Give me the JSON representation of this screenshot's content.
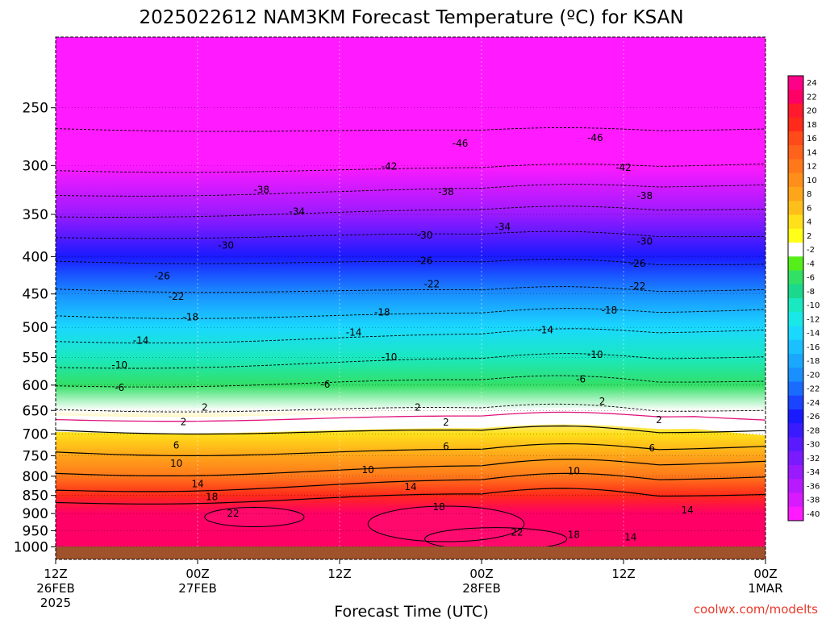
{
  "chart_data": {
    "type": "heatmap",
    "title": "2025022612 NAM3KM Forecast Temperature (ºC) for KSAN",
    "xlabel": "Forecast Time (UTC)",
    "ylabel": "",
    "y_scale": "log-pressure",
    "ylim": [
      1040,
      200
    ],
    "yticks": [
      "250",
      "300",
      "350",
      "400",
      "450",
      "500",
      "550",
      "600",
      "650",
      "700",
      "750",
      "800",
      "850",
      "900",
      "950",
      "1000"
    ],
    "x_ticks": [
      {
        "lines": [
          "12Z",
          "26FEB",
          "2025"
        ]
      },
      {
        "lines": [
          "00Z",
          "27FEB"
        ]
      },
      {
        "lines": [
          "12Z"
        ]
      },
      {
        "lines": [
          "00Z",
          "28FEB"
        ]
      },
      {
        "lines": [
          "12Z"
        ]
      },
      {
        "lines": [
          "00Z",
          "1MAR"
        ]
      }
    ],
    "x_valid_times": [
      "2025-02-26 12Z",
      "2025-02-27 00Z",
      "2025-02-27 12Z",
      "2025-02-28 00Z",
      "2025-02-28 12Z",
      "2025-03-01 00Z"
    ],
    "grid": "dotted",
    "colorbar": {
      "position": "right",
      "labels": [
        "24",
        "22",
        "20",
        "18",
        "16",
        "14",
        "12",
        "10",
        "8",
        "6",
        "4",
        "2",
        "-2",
        "-4",
        "-6",
        "-8",
        "-10",
        "-12",
        "-14",
        "-16",
        "-18",
        "-20",
        "-22",
        "-24",
        "-26",
        "-28",
        "-30",
        "-32",
        "-34",
        "-36",
        "-38",
        "-40"
      ],
      "colors": [
        "#ff0088",
        "#ff0066",
        "#ff1a2e",
        "#ff2a1a",
        "#ff4a1a",
        "#ff621a",
        "#ff781a",
        "#ff8f1a",
        "#ffa51a",
        "#ffbf1a",
        "#ffe01a",
        "#ffff1a",
        "#ffffff",
        "#55ee1a",
        "#33e066",
        "#1ad88c",
        "#1ae8c0",
        "#1ae8e8",
        "#1ad8ff",
        "#1ac0ff",
        "#1aa8ff",
        "#1a90ff",
        "#1a6cff",
        "#1a44ff",
        "#1a1aff",
        "#3a1aff",
        "#5a1aff",
        "#7a1aff",
        "#9a1aff",
        "#b81aff",
        "#d81aff",
        "#ff1aff"
      ]
    },
    "temperature_profile": [
      {
        "p": 1000,
        "t": 22
      },
      {
        "p": 950,
        "t": 22
      },
      {
        "p": 900,
        "t": 21
      },
      {
        "p": 850,
        "t": 17
      },
      {
        "p": 800,
        "t": 12
      },
      {
        "p": 750,
        "t": 8
      },
      {
        "p": 700,
        "t": 3
      },
      {
        "p": 650,
        "t": -2
      },
      {
        "p": 600,
        "t": -6
      },
      {
        "p": 550,
        "t": -11
      },
      {
        "p": 500,
        "t": -15
      },
      {
        "p": 450,
        "t": -21
      },
      {
        "p": 400,
        "t": -27
      },
      {
        "p": 350,
        "t": -34
      },
      {
        "p": 300,
        "t": -42
      },
      {
        "p": 250,
        "t": -48
      },
      {
        "p": 200,
        "t": -52
      }
    ],
    "contour_labels": [
      {
        "text": "-46",
        "x": 0.57,
        "p": 280
      },
      {
        "text": "-46",
        "x": 0.76,
        "p": 275
      },
      {
        "text": "-42",
        "x": 0.47,
        "p": 301
      },
      {
        "text": "-42",
        "x": 0.8,
        "p": 302
      },
      {
        "text": "-38",
        "x": 0.29,
        "p": 324
      },
      {
        "text": "-38",
        "x": 0.55,
        "p": 326
      },
      {
        "text": "-38",
        "x": 0.83,
        "p": 330
      },
      {
        "text": "-34",
        "x": 0.34,
        "p": 347
      },
      {
        "text": "-34",
        "x": 0.63,
        "p": 364
      },
      {
        "text": "-30",
        "x": 0.24,
        "p": 386
      },
      {
        "text": "-30",
        "x": 0.52,
        "p": 374
      },
      {
        "text": "-30",
        "x": 0.83,
        "p": 381
      },
      {
        "text": "-26",
        "x": 0.15,
        "p": 425
      },
      {
        "text": "-26",
        "x": 0.52,
        "p": 405
      },
      {
        "text": "-26",
        "x": 0.82,
        "p": 409
      },
      {
        "text": "-22",
        "x": 0.17,
        "p": 454
      },
      {
        "text": "-22",
        "x": 0.53,
        "p": 436
      },
      {
        "text": "-22",
        "x": 0.82,
        "p": 439
      },
      {
        "text": "-18",
        "x": 0.19,
        "p": 484
      },
      {
        "text": "-18",
        "x": 0.46,
        "p": 477
      },
      {
        "text": "-18",
        "x": 0.78,
        "p": 474
      },
      {
        "text": "-14",
        "x": 0.12,
        "p": 521
      },
      {
        "text": "-14",
        "x": 0.42,
        "p": 508
      },
      {
        "text": "-14",
        "x": 0.69,
        "p": 504
      },
      {
        "text": "-10",
        "x": 0.09,
        "p": 563
      },
      {
        "text": "-10",
        "x": 0.47,
        "p": 549
      },
      {
        "text": "-10",
        "x": 0.76,
        "p": 545
      },
      {
        "text": "-6",
        "x": 0.09,
        "p": 605
      },
      {
        "text": "-6",
        "x": 0.38,
        "p": 599
      },
      {
        "text": "-6",
        "x": 0.74,
        "p": 589
      },
      {
        "text": "2",
        "x": 0.21,
        "p": 644
      },
      {
        "text": "2",
        "x": 0.51,
        "p": 644
      },
      {
        "text": "2",
        "x": 0.77,
        "p": 632
      },
      {
        "text": "2",
        "x": 0.18,
        "p": 674
      },
      {
        "text": "2",
        "x": 0.55,
        "p": 675
      },
      {
        "text": "2",
        "x": 0.85,
        "p": 670
      },
      {
        "text": "6",
        "x": 0.17,
        "p": 726
      },
      {
        "text": "6",
        "x": 0.55,
        "p": 728
      },
      {
        "text": "6",
        "x": 0.84,
        "p": 732
      },
      {
        "text": "10",
        "x": 0.17,
        "p": 768
      },
      {
        "text": "10",
        "x": 0.44,
        "p": 784
      },
      {
        "text": "10",
        "x": 0.73,
        "p": 787
      },
      {
        "text": "14",
        "x": 0.2,
        "p": 820
      },
      {
        "text": "14",
        "x": 0.5,
        "p": 827
      },
      {
        "text": "14",
        "x": 0.89,
        "p": 890
      },
      {
        "text": "18",
        "x": 0.22,
        "p": 854
      },
      {
        "text": "18",
        "x": 0.54,
        "p": 882
      },
      {
        "text": "18",
        "x": 0.73,
        "p": 962
      },
      {
        "text": "22",
        "x": 0.25,
        "p": 900
      },
      {
        "text": "22",
        "x": 0.65,
        "p": 955
      },
      {
        "text": "14",
        "x": 0.81,
        "p": 970
      }
    ]
  },
  "credit": "coolwx.com/modelts"
}
